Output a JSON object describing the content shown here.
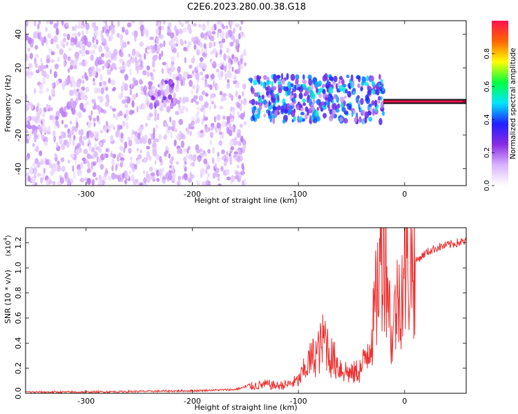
{
  "title": "C2E6.2023.280.00.38.G18",
  "chart_data": [
    {
      "type": "heatmap",
      "xlabel": "Height of straight line (km)",
      "ylabel": "Frequency (Hz)",
      "xlim": [
        -357,
        58
      ],
      "ylim": [
        -50,
        48
      ],
      "xticks": [
        -300,
        -200,
        -100,
        0
      ],
      "yticks": [
        -40,
        -20,
        0,
        20,
        40
      ],
      "colorbar": {
        "label": "Normalized spectral amplitude",
        "range": [
          0,
          1
        ],
        "ticks": [
          0.0,
          0.2,
          0.4,
          0.6,
          0.8
        ],
        "colors": [
          "#ffffff",
          "#d9b3ff",
          "#8a2be2",
          "#2020ff",
          "#00e5ff",
          "#00ff40",
          "#ffff00",
          "#ff6600",
          "#ff1050"
        ]
      },
      "regions": [
        {
          "x": [
            -357,
            -150
          ],
          "y": [
            -50,
            48
          ],
          "amplitude": 0.15,
          "description_color": "#8a2be2"
        },
        {
          "x": [
            -240,
            -215
          ],
          "y": [
            -3,
            12
          ],
          "amplitude": 0.25
        },
        {
          "x": [
            -145,
            -20
          ],
          "y": [
            -12,
            15
          ],
          "amplitude": 0.45
        },
        {
          "x": [
            -20,
            58
          ],
          "y": [
            -1,
            1
          ],
          "amplitude": 1.0
        }
      ]
    },
    {
      "type": "line",
      "xlabel": "Height of straight line (km)",
      "ylabel": "SNR (10 * v/v)",
      "multiplier_label": "(x10",
      "multiplier_exp": "4",
      "xlim": [
        -357,
        58
      ],
      "ylim": [
        0,
        1.32
      ],
      "xticks": [
        -300,
        -200,
        -100,
        0
      ],
      "yticks": [
        0.0,
        0.2,
        0.4,
        0.6,
        0.8,
        1.0,
        1.2
      ],
      "series": [
        {
          "color": "#ee3030",
          "x": [
            -357,
            -300,
            -250,
            -200,
            -160,
            -150,
            -140,
            -130,
            -120,
            -110,
            -100,
            -90,
            -80,
            -75,
            -70,
            -60,
            -50,
            -40,
            -30,
            -25,
            -20,
            -18,
            -15,
            -12,
            -10,
            -5,
            0,
            10,
            20,
            30,
            40,
            50,
            58
          ],
          "y": [
            0.01,
            0.01,
            0.015,
            0.02,
            0.03,
            0.05,
            0.06,
            0.07,
            0.06,
            0.07,
            0.1,
            0.25,
            0.35,
            0.45,
            0.3,
            0.2,
            0.15,
            0.2,
            0.5,
            0.9,
            1.25,
            1.2,
            0.8,
            0.4,
            0.6,
            0.8,
            0.95,
            1.05,
            1.12,
            1.16,
            1.18,
            1.2,
            1.21
          ]
        }
      ]
    }
  ]
}
